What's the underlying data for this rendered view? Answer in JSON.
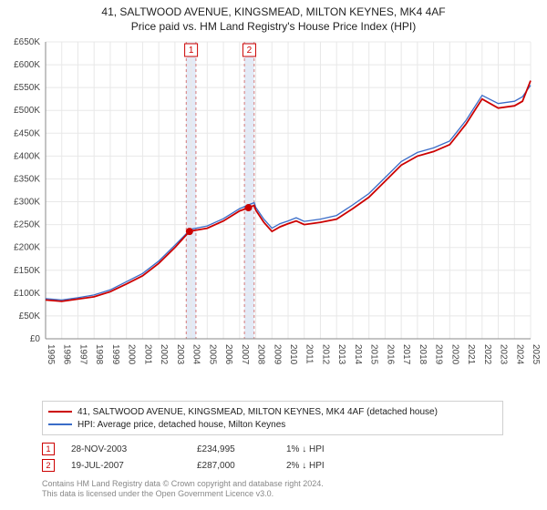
{
  "title": {
    "line1": "41, SALTWOOD AVENUE, KINGSMEAD, MILTON KEYNES, MK4 4AF",
    "line2": "Price paid vs. HM Land Registry's House Price Index (HPI)"
  },
  "chart": {
    "type": "line",
    "background_color": "#ffffff",
    "grid_color": "#e8e8e8",
    "axis_color": "#888888",
    "x_range": [
      1995,
      2025
    ],
    "y_range": [
      0,
      650000
    ],
    "y_ticks": [
      0,
      50000,
      100000,
      150000,
      200000,
      250000,
      300000,
      350000,
      400000,
      450000,
      500000,
      550000,
      600000,
      650000
    ],
    "y_labels": [
      "£0",
      "£50K",
      "£100K",
      "£150K",
      "£200K",
      "£250K",
      "£300K",
      "£350K",
      "£400K",
      "£450K",
      "£500K",
      "£550K",
      "£600K",
      "£650K"
    ],
    "x_ticks": [
      1995,
      1996,
      1997,
      1998,
      1999,
      2000,
      2001,
      2002,
      2003,
      2004,
      2005,
      2006,
      2007,
      2008,
      2009,
      2010,
      2011,
      2012,
      2013,
      2014,
      2015,
      2016,
      2017,
      2018,
      2019,
      2020,
      2021,
      2022,
      2023,
      2024,
      2025
    ],
    "shaded_bands": [
      {
        "x_start": 2003.7,
        "x_end": 2004.3,
        "label": "1"
      },
      {
        "x_start": 2007.3,
        "x_end": 2007.9,
        "label": "2"
      }
    ],
    "series": [
      {
        "name": "property_price",
        "color": "#cc0000",
        "width": 1.8,
        "data": [
          [
            1995,
            85000
          ],
          [
            1996,
            82000
          ],
          [
            1997,
            87000
          ],
          [
            1998,
            92000
          ],
          [
            1999,
            103000
          ],
          [
            2000,
            120000
          ],
          [
            2001,
            138000
          ],
          [
            2002,
            165000
          ],
          [
            2003,
            200000
          ],
          [
            2003.9,
            234995
          ],
          [
            2004,
            236000
          ],
          [
            2005,
            242000
          ],
          [
            2006,
            258000
          ],
          [
            2007,
            280000
          ],
          [
            2007.55,
            287000
          ],
          [
            2007.9,
            292000
          ],
          [
            2008,
            282000
          ],
          [
            2008.5,
            255000
          ],
          [
            2009,
            235000
          ],
          [
            2009.5,
            245000
          ],
          [
            2010,
            252000
          ],
          [
            2010.5,
            258000
          ],
          [
            2011,
            250000
          ],
          [
            2012,
            255000
          ],
          [
            2013,
            262000
          ],
          [
            2014,
            285000
          ],
          [
            2015,
            310000
          ],
          [
            2016,
            345000
          ],
          [
            2017,
            380000
          ],
          [
            2018,
            400000
          ],
          [
            2019,
            410000
          ],
          [
            2020,
            425000
          ],
          [
            2021,
            470000
          ],
          [
            2022,
            525000
          ],
          [
            2023,
            505000
          ],
          [
            2024,
            510000
          ],
          [
            2024.5,
            520000
          ],
          [
            2025,
            565000
          ]
        ]
      },
      {
        "name": "hpi",
        "color": "#3a6cc8",
        "width": 1.3,
        "data": [
          [
            1995,
            88000
          ],
          [
            1996,
            85000
          ],
          [
            1997,
            90000
          ],
          [
            1998,
            96000
          ],
          [
            1999,
            107000
          ],
          [
            2000,
            125000
          ],
          [
            2001,
            143000
          ],
          [
            2002,
            170000
          ],
          [
            2003,
            205000
          ],
          [
            2003.9,
            237000
          ],
          [
            2004,
            240000
          ],
          [
            2005,
            247000
          ],
          [
            2006,
            263000
          ],
          [
            2007,
            285000
          ],
          [
            2007.55,
            293000
          ],
          [
            2007.9,
            298000
          ],
          [
            2008,
            288000
          ],
          [
            2008.5,
            262000
          ],
          [
            2009,
            242000
          ],
          [
            2009.5,
            252000
          ],
          [
            2010,
            258000
          ],
          [
            2010.5,
            265000
          ],
          [
            2011,
            257000
          ],
          [
            2012,
            262000
          ],
          [
            2013,
            270000
          ],
          [
            2014,
            293000
          ],
          [
            2015,
            318000
          ],
          [
            2016,
            353000
          ],
          [
            2017,
            388000
          ],
          [
            2018,
            408000
          ],
          [
            2019,
            418000
          ],
          [
            2020,
            433000
          ],
          [
            2021,
            478000
          ],
          [
            2022,
            533000
          ],
          [
            2023,
            515000
          ],
          [
            2024,
            520000
          ],
          [
            2024.5,
            530000
          ],
          [
            2025,
            555000
          ]
        ]
      }
    ],
    "markers": [
      {
        "x": 2003.9,
        "y": 234995,
        "label": "1"
      },
      {
        "x": 2007.55,
        "y": 287000,
        "label": "2"
      }
    ]
  },
  "legend": {
    "item1": "41, SALTWOOD AVENUE, KINGSMEAD, MILTON KEYNES, MK4 4AF (detached house)",
    "item2": "HPI: Average price, detached house, Milton Keynes"
  },
  "transactions": [
    {
      "num": "1",
      "date": "28-NOV-2003",
      "price": "£234,995",
      "diff": "1% ↓ HPI"
    },
    {
      "num": "2",
      "date": "19-JUL-2007",
      "price": "£287,000",
      "diff": "2% ↓ HPI"
    }
  ],
  "footer": {
    "line1": "Contains HM Land Registry data © Crown copyright and database right 2024.",
    "line2": "This data is licensed under the Open Government Licence v3.0."
  }
}
